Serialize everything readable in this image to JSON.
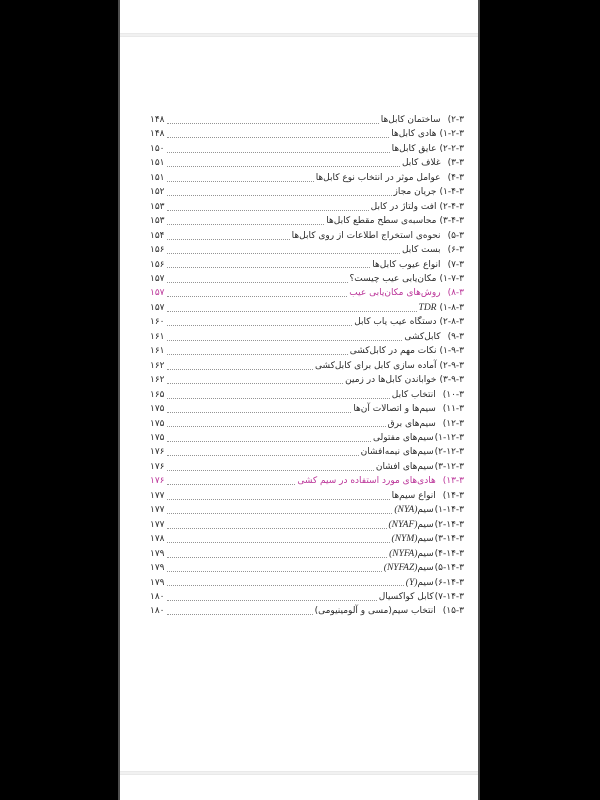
{
  "viewer": {
    "background_color": "#000000",
    "page_background": "#ffffff",
    "separator_color": "#f1f1f1",
    "page_edge_color": "#4e4e4e"
  },
  "colors": {
    "text": "#2b2b2b",
    "highlight_link": "#bb3599",
    "leader_dots": "#949494"
  },
  "toc": {
    "rows": [
      {
        "num": "۳-۲)",
        "title": "ساختمان کابل‌ها",
        "page": "۱۴۸"
      },
      {
        "num": "۳-۲-۱)",
        "title": "هادی کابل‌ها",
        "page": "۱۴۸"
      },
      {
        "num": "۳-۲-۲)",
        "title": "عایق کابل‌ها",
        "page": "۱۵۰"
      },
      {
        "num": "۳-۳)",
        "title": "غلاف کابل",
        "page": "۱۵۱"
      },
      {
        "num": "۳-۴)",
        "title": "عوامل موثر در انتخاب نوع کابل‌ها",
        "page": "۱۵۱"
      },
      {
        "num": "۳-۴-۱)",
        "title": "جریان مجاز",
        "page": "۱۵۲"
      },
      {
        "num": "۳-۴-۲)",
        "title": "افت ولتاژ در کابل",
        "page": "۱۵۳"
      },
      {
        "num": "۳-۴-۳)",
        "title": "محاسبه‌ی سطح مقطع کابل‌ها",
        "page": "۱۵۳"
      },
      {
        "num": "۳-۵)",
        "title": "نحوه‌ی استخراج اطلاعات از روی کابل‌ها",
        "page": "۱۵۴"
      },
      {
        "num": "۳-۶)",
        "title": "بست کابل",
        "page": "۱۵۶"
      },
      {
        "num": "۳-۷)",
        "title": "انواع عیوب کابل‌ها",
        "page": "۱۵۶"
      },
      {
        "num": "۳-۷-۱)",
        "title": "مکان‌یابی عیب چیست؟",
        "page": "۱۵۷"
      },
      {
        "num": "۳-۸)",
        "title": "روش‌های مکان‌یابی عیب",
        "page": "۱۵۷",
        "highlight": true
      },
      {
        "num": "۳-۸-۱)",
        "latin": "TDR",
        "page": "۱۵۷"
      },
      {
        "num": "۳-۸-۲)",
        "title": "دستگاه عیب یاب کابل",
        "page": "۱۶۰"
      },
      {
        "num": "۳-۹)",
        "title": "کابل‌کشی",
        "page": "۱۶۱"
      },
      {
        "num": "۳-۹-۱)",
        "title": "نکات مهم در کابل‌کشی",
        "page": "۱۶۱"
      },
      {
        "num": "۳-۹-۲)",
        "title": "آماده سازی کابل برای کابل‌کشی",
        "page": "۱۶۲"
      },
      {
        "num": "۳-۹-۳)",
        "title": "خواباندن کابل‌ها در زمین",
        "page": "۱۶۲"
      },
      {
        "num": "۳-۱۰)",
        "title": "انتخاب کابل",
        "page": "۱۶۵"
      },
      {
        "num": "۳-۱۱)",
        "title": "سیم‌ها و اتصالات آن‌ها",
        "page": "۱۷۵"
      },
      {
        "num": "۳-۱۲)",
        "title": "سیم‌های برق",
        "page": "۱۷۵"
      },
      {
        "num": "۳-۱۲-۱)",
        "title": "سیم‌های مفتولی",
        "page": "۱۷۵",
        "tight": true
      },
      {
        "num": "۳-۱۲-۲)",
        "title": "سیم‌های نیمه‌افشان",
        "page": "۱۷۶",
        "tight": true
      },
      {
        "num": "۳-۱۲-۳)",
        "title": "سیم‌های افشان",
        "page": "۱۷۶",
        "tight": true
      },
      {
        "num": "۳-۱۳)",
        "title": "هادی‌های مورد استفاده در سیم کشی",
        "page": "۱۷۶",
        "highlight": true
      },
      {
        "num": "۳-۱۴)",
        "title": "انواع سیم‌ها",
        "page": "۱۷۷"
      },
      {
        "num": "۳-۱۴-۱)",
        "title": "سیم",
        "latin": "(NYA)",
        "page": "۱۷۷",
        "tight": true
      },
      {
        "num": "۳-۱۴-۲)",
        "title": "سیم",
        "latin": "(NYAF)",
        "page": "۱۷۷",
        "tight": true
      },
      {
        "num": "۳-۱۴-۳)",
        "title": "سیم",
        "latin": "(NYM)",
        "page": "۱۷۸",
        "tight": true
      },
      {
        "num": "۳-۱۴-۴)",
        "title": "سیم",
        "latin": "(NYFA)",
        "page": "۱۷۹",
        "tight": true
      },
      {
        "num": "۳-۱۴-۵)",
        "title": "سیم",
        "latin": "(NYFAZ)",
        "page": "۱۷۹",
        "tight": true
      },
      {
        "num": "۳-۱۴-۶)",
        "title": "سیم",
        "latin": "(Y)",
        "page": "۱۷۹",
        "tight": true
      },
      {
        "num": "۳-۱۴-۷)",
        "title": "کابل کواکسیال",
        "page": "۱۸۰",
        "tight": true
      },
      {
        "num": "۳-۱۵)",
        "title": "انتخاب سیم(مسی و آلومینیومی)",
        "page": "۱۸۰"
      }
    ]
  }
}
